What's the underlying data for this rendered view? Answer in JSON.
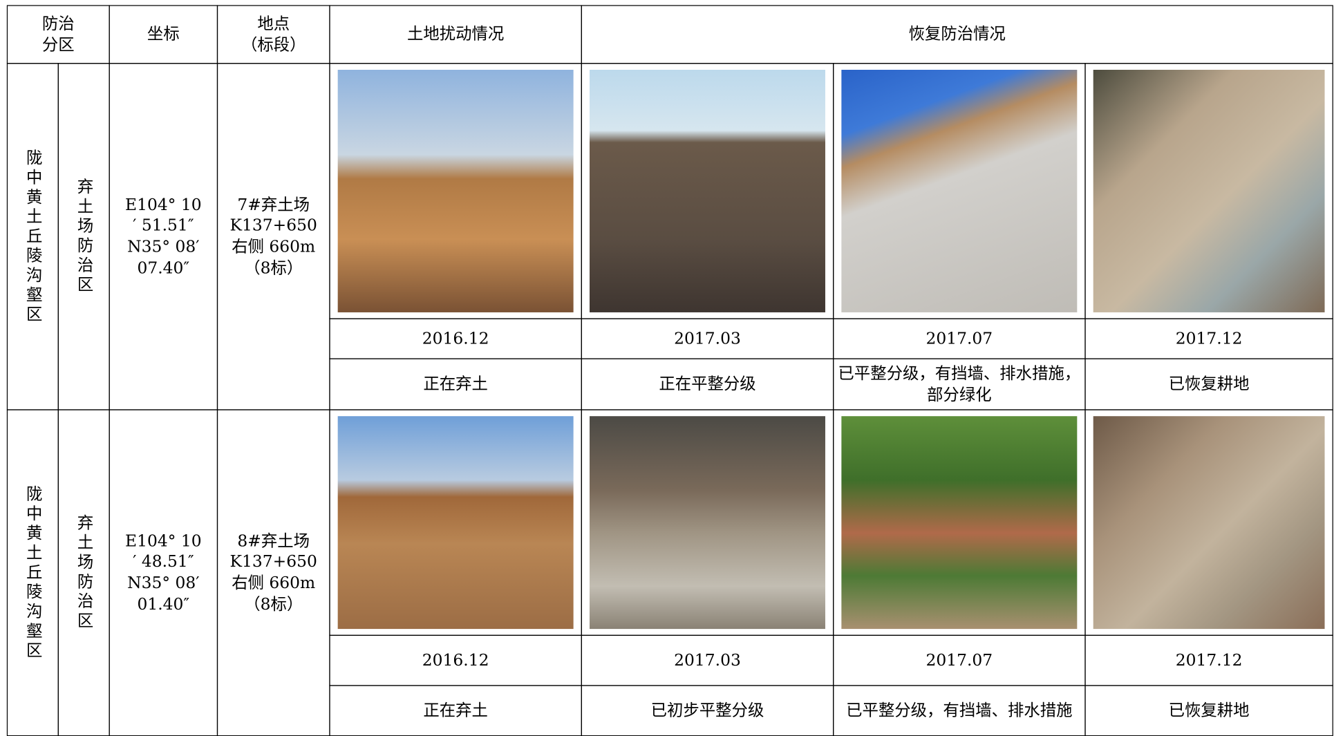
{
  "header": {
    "zone": [
      "防治",
      "分区"
    ],
    "coordinate": "坐标",
    "location": [
      "地点",
      "（标段）"
    ],
    "disturbance": "土地扰动情况",
    "recovery": "恢复防治情况"
  },
  "rows": [
    {
      "zone": "陇中黄土丘陵沟壑区",
      "subzone": "弃土场防治区",
      "coordinate": [
        "E104° 10",
        "′ 51.51″",
        "N35° 08′",
        "07.40″"
      ],
      "location": [
        "7#弃土场",
        "K137+650",
        "右侧 660m",
        "（8标）"
      ],
      "dates": [
        "2016.12",
        "2017.03",
        "2017.07",
        "2017.12"
      ],
      "status": [
        "正在弃土",
        "正在平整分级",
        "已平整分级，有挡墙、排水措施，部分绿化",
        "已恢复耕地"
      ]
    },
    {
      "zone": "陇中黄土丘陵沟壑区",
      "subzone": "弃土场防治区",
      "coordinate": [
        "E104° 10",
        "′ 48.51″",
        "N35° 08′",
        "01.40″"
      ],
      "location": [
        "8#弃土场",
        "K137+650",
        "右侧 660m",
        "（8标）"
      ],
      "dates": [
        "2016.12",
        "2017.03",
        "2017.07",
        "2017.12"
      ],
      "status": [
        "正在弃土",
        "已初步平整分级",
        "已平整分级，有挡墙、排水措施",
        "已恢复耕地"
      ]
    }
  ]
}
